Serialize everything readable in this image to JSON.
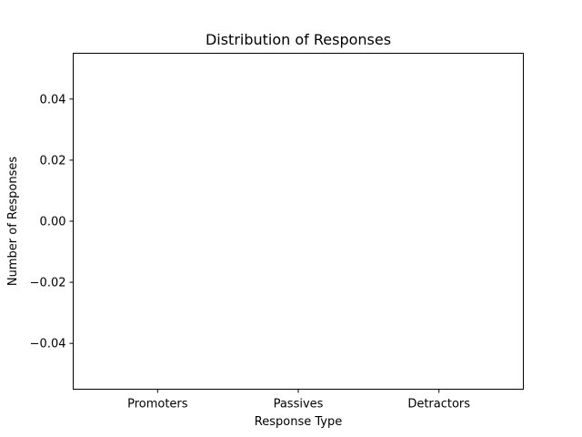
{
  "chart_data": {
    "type": "bar",
    "title": "Distribution of Responses",
    "xlabel": "Response Type",
    "ylabel": "Number of Responses",
    "categories": [
      "Promoters",
      "Passives",
      "Detractors"
    ],
    "values": [
      0,
      0,
      0
    ],
    "ylim": [
      -0.055,
      0.055
    ],
    "yticks": [
      0.04,
      0.02,
      0.0,
      -0.02,
      -0.04
    ],
    "ytick_labels": [
      "0.04",
      "0.02",
      "0.00",
      "−0.02",
      "−0.04"
    ],
    "grid": false,
    "legend": "none"
  }
}
